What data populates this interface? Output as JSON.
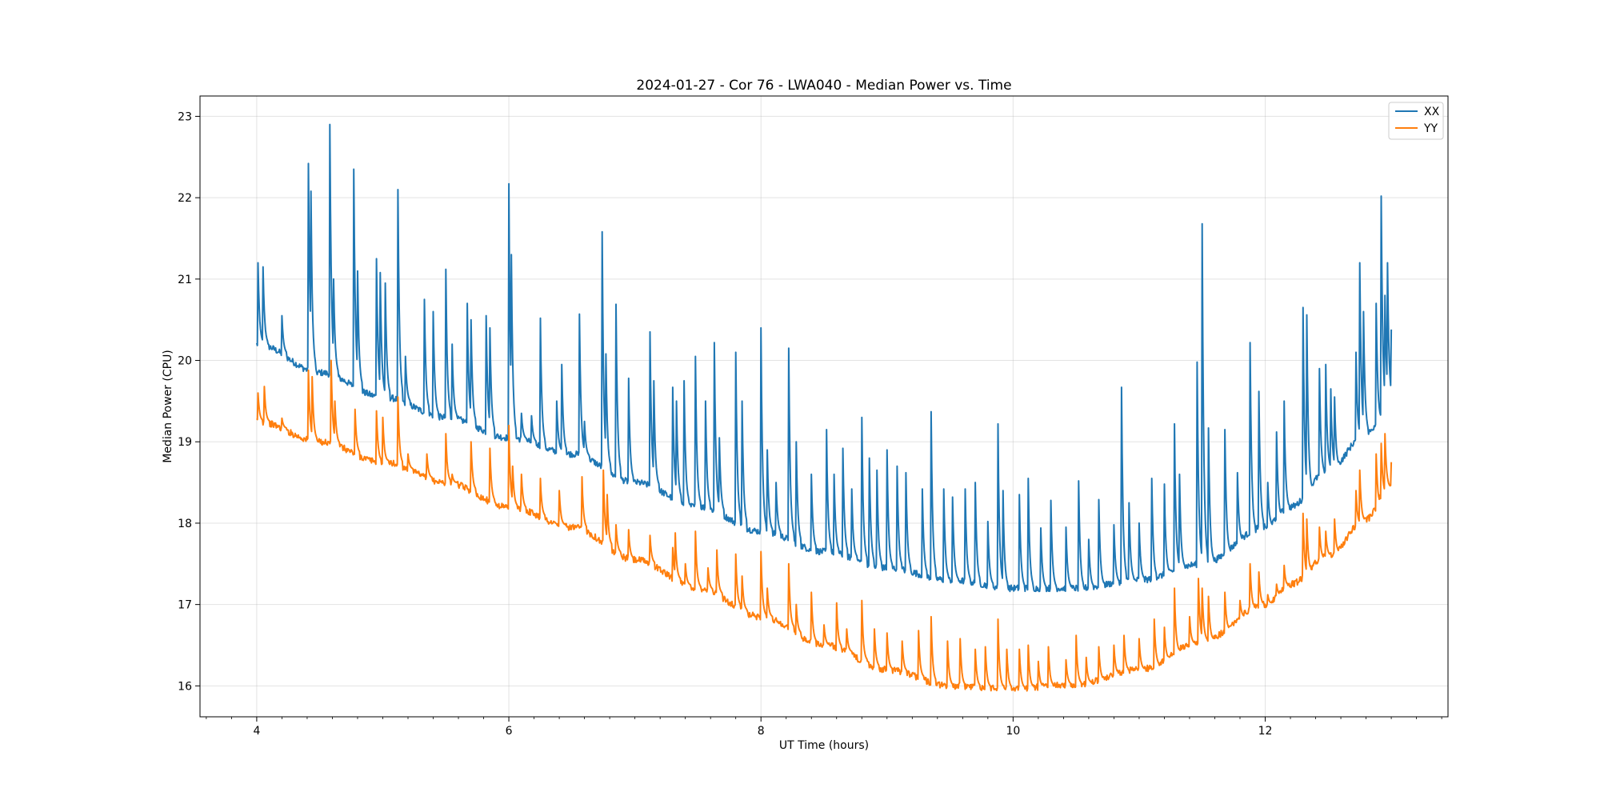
{
  "chart_data": {
    "type": "line",
    "title": "2024-01-27 - Cor 76 - LWA040 - Median Power vs. Time",
    "xlabel": "UT Time (hours)",
    "ylabel": "Median Power (CPU)",
    "xlim": [
      3.55,
      13.45
    ],
    "ylim": [
      15.62,
      23.25
    ],
    "xticks": [
      4,
      6,
      8,
      10,
      12
    ],
    "xtick_labels": [
      "4",
      "6",
      "8",
      "10",
      "12"
    ],
    "yticks": [
      16,
      17,
      18,
      19,
      20,
      21,
      22,
      23
    ],
    "ytick_labels": [
      "16",
      "17",
      "18",
      "19",
      "20",
      "21",
      "22",
      "23"
    ],
    "grid": true,
    "legend": "top-right",
    "series": [
      {
        "name": "XX",
        "color": "#1f77b4",
        "baseline": {
          "x": [
            4.0,
            4.5,
            5.0,
            5.5,
            6.0,
            6.5,
            7.0,
            7.5,
            8.0,
            8.5,
            9.0,
            9.5,
            10.0,
            10.5,
            11.0,
            11.5,
            12.0,
            12.2,
            12.5,
            12.8,
            13.0
          ],
          "y": [
            20.2,
            19.85,
            19.55,
            19.3,
            19.05,
            18.85,
            18.5,
            18.2,
            17.9,
            17.65,
            17.45,
            17.3,
            17.2,
            17.2,
            17.3,
            17.5,
            17.95,
            18.2,
            18.65,
            19.1,
            19.5
          ]
        },
        "spikes": [
          {
            "x": 4.01,
            "y": 21.2
          },
          {
            "x": 4.05,
            "y": 21.15
          },
          {
            "x": 4.2,
            "y": 20.55
          },
          {
            "x": 4.41,
            "y": 22.42
          },
          {
            "x": 4.43,
            "y": 22.08
          },
          {
            "x": 4.58,
            "y": 22.9
          },
          {
            "x": 4.61,
            "y": 21.0
          },
          {
            "x": 4.77,
            "y": 22.35
          },
          {
            "x": 4.8,
            "y": 21.1
          },
          {
            "x": 4.95,
            "y": 21.25
          },
          {
            "x": 4.98,
            "y": 21.08
          },
          {
            "x": 5.02,
            "y": 20.95
          },
          {
            "x": 5.12,
            "y": 22.1
          },
          {
            "x": 5.18,
            "y": 20.05
          },
          {
            "x": 5.33,
            "y": 20.75
          },
          {
            "x": 5.4,
            "y": 20.6
          },
          {
            "x": 5.5,
            "y": 21.12
          },
          {
            "x": 5.55,
            "y": 20.2
          },
          {
            "x": 5.67,
            "y": 20.7
          },
          {
            "x": 5.7,
            "y": 20.5
          },
          {
            "x": 5.82,
            "y": 20.55
          },
          {
            "x": 5.85,
            "y": 20.4
          },
          {
            "x": 6.0,
            "y": 22.17
          },
          {
            "x": 6.02,
            "y": 21.3
          },
          {
            "x": 6.1,
            "y": 19.35
          },
          {
            "x": 6.18,
            "y": 19.32
          },
          {
            "x": 6.25,
            "y": 20.52
          },
          {
            "x": 6.38,
            "y": 19.5
          },
          {
            "x": 6.42,
            "y": 19.95
          },
          {
            "x": 6.56,
            "y": 20.57
          },
          {
            "x": 6.6,
            "y": 19.25
          },
          {
            "x": 6.74,
            "y": 21.58
          },
          {
            "x": 6.77,
            "y": 20.08
          },
          {
            "x": 6.85,
            "y": 20.69
          },
          {
            "x": 6.95,
            "y": 19.78
          },
          {
            "x": 7.12,
            "y": 20.35
          },
          {
            "x": 7.15,
            "y": 19.75
          },
          {
            "x": 7.3,
            "y": 19.67
          },
          {
            "x": 7.33,
            "y": 19.5
          },
          {
            "x": 7.39,
            "y": 19.75
          },
          {
            "x": 7.48,
            "y": 20.05
          },
          {
            "x": 7.56,
            "y": 19.5
          },
          {
            "x": 7.63,
            "y": 20.22
          },
          {
            "x": 7.67,
            "y": 19.05
          },
          {
            "x": 7.8,
            "y": 20.1
          },
          {
            "x": 7.85,
            "y": 19.5
          },
          {
            "x": 8.0,
            "y": 20.4
          },
          {
            "x": 8.05,
            "y": 18.9
          },
          {
            "x": 8.12,
            "y": 18.5
          },
          {
            "x": 8.22,
            "y": 20.15
          },
          {
            "x": 8.28,
            "y": 19.0
          },
          {
            "x": 8.4,
            "y": 18.6
          },
          {
            "x": 8.52,
            "y": 19.15
          },
          {
            "x": 8.58,
            "y": 18.6
          },
          {
            "x": 8.65,
            "y": 18.92
          },
          {
            "x": 8.72,
            "y": 18.42
          },
          {
            "x": 8.8,
            "y": 19.3
          },
          {
            "x": 8.86,
            "y": 18.8
          },
          {
            "x": 8.92,
            "y": 18.65
          },
          {
            "x": 9.0,
            "y": 18.9
          },
          {
            "x": 9.08,
            "y": 18.7
          },
          {
            "x": 9.15,
            "y": 18.62
          },
          {
            "x": 9.28,
            "y": 18.42
          },
          {
            "x": 9.35,
            "y": 19.37
          },
          {
            "x": 9.45,
            "y": 18.42
          },
          {
            "x": 9.52,
            "y": 18.32
          },
          {
            "x": 9.62,
            "y": 18.42
          },
          {
            "x": 9.7,
            "y": 18.5
          },
          {
            "x": 9.8,
            "y": 18.02
          },
          {
            "x": 9.88,
            "y": 19.22
          },
          {
            "x": 9.92,
            "y": 18.4
          },
          {
            "x": 10.05,
            "y": 18.35
          },
          {
            "x": 10.12,
            "y": 18.55
          },
          {
            "x": 10.22,
            "y": 17.94
          },
          {
            "x": 10.3,
            "y": 18.28
          },
          {
            "x": 10.42,
            "y": 17.95
          },
          {
            "x": 10.52,
            "y": 18.52
          },
          {
            "x": 10.6,
            "y": 17.8
          },
          {
            "x": 10.68,
            "y": 18.29
          },
          {
            "x": 10.8,
            "y": 17.98
          },
          {
            "x": 10.86,
            "y": 19.67
          },
          {
            "x": 10.92,
            "y": 18.25
          },
          {
            "x": 11.0,
            "y": 18.0
          },
          {
            "x": 11.1,
            "y": 18.55
          },
          {
            "x": 11.2,
            "y": 18.48
          },
          {
            "x": 11.28,
            "y": 19.22
          },
          {
            "x": 11.32,
            "y": 18.6
          },
          {
            "x": 11.46,
            "y": 19.98
          },
          {
            "x": 11.5,
            "y": 21.68
          },
          {
            "x": 11.55,
            "y": 19.17
          },
          {
            "x": 11.68,
            "y": 19.15
          },
          {
            "x": 11.78,
            "y": 18.62
          },
          {
            "x": 11.88,
            "y": 20.22
          },
          {
            "x": 11.95,
            "y": 19.62
          },
          {
            "x": 12.02,
            "y": 18.5
          },
          {
            "x": 12.09,
            "y": 19.12
          },
          {
            "x": 12.15,
            "y": 19.5
          },
          {
            "x": 12.3,
            "y": 20.65
          },
          {
            "x": 12.33,
            "y": 20.56
          },
          {
            "x": 12.43,
            "y": 19.9
          },
          {
            "x": 12.48,
            "y": 19.95
          },
          {
            "x": 12.52,
            "y": 19.65
          },
          {
            "x": 12.55,
            "y": 19.55
          },
          {
            "x": 12.72,
            "y": 20.1
          },
          {
            "x": 12.75,
            "y": 21.2
          },
          {
            "x": 12.78,
            "y": 20.6
          },
          {
            "x": 12.88,
            "y": 20.7
          },
          {
            "x": 12.92,
            "y": 22.02
          },
          {
            "x": 12.95,
            "y": 20.8
          },
          {
            "x": 12.97,
            "y": 21.2
          },
          {
            "x": 13.0,
            "y": 20.38
          }
        ]
      },
      {
        "name": "YY",
        "color": "#ff7f0e",
        "baseline": {
          "x": [
            4.0,
            4.5,
            5.0,
            5.5,
            6.0,
            6.5,
            7.0,
            7.5,
            8.0,
            8.5,
            9.0,
            9.5,
            10.0,
            10.5,
            11.0,
            11.5,
            12.0,
            12.2,
            12.5,
            12.8,
            13.0
          ],
          "y": [
            19.25,
            19.0,
            18.75,
            18.5,
            18.2,
            17.95,
            17.55,
            17.2,
            16.85,
            16.5,
            16.2,
            16.0,
            15.97,
            16.02,
            16.2,
            16.55,
            17.0,
            17.25,
            17.6,
            18.05,
            18.5
          ]
        },
        "spikes": [
          {
            "x": 4.01,
            "y": 19.6
          },
          {
            "x": 4.06,
            "y": 19.68
          },
          {
            "x": 4.2,
            "y": 19.29
          },
          {
            "x": 4.41,
            "y": 19.88
          },
          {
            "x": 4.44,
            "y": 19.8
          },
          {
            "x": 4.59,
            "y": 20.0
          },
          {
            "x": 4.62,
            "y": 19.5
          },
          {
            "x": 4.78,
            "y": 19.4
          },
          {
            "x": 4.95,
            "y": 19.38
          },
          {
            "x": 5.0,
            "y": 19.3
          },
          {
            "x": 5.12,
            "y": 19.55
          },
          {
            "x": 5.2,
            "y": 18.85
          },
          {
            "x": 5.35,
            "y": 18.85
          },
          {
            "x": 5.5,
            "y": 19.1
          },
          {
            "x": 5.55,
            "y": 18.6
          },
          {
            "x": 5.7,
            "y": 19.0
          },
          {
            "x": 5.85,
            "y": 18.92
          },
          {
            "x": 6.0,
            "y": 19.2
          },
          {
            "x": 6.03,
            "y": 18.7
          },
          {
            "x": 6.1,
            "y": 18.6
          },
          {
            "x": 6.25,
            "y": 18.55
          },
          {
            "x": 6.4,
            "y": 18.4
          },
          {
            "x": 6.58,
            "y": 18.57
          },
          {
            "x": 6.75,
            "y": 18.65
          },
          {
            "x": 6.78,
            "y": 18.35
          },
          {
            "x": 6.85,
            "y": 17.98
          },
          {
            "x": 6.95,
            "y": 17.92
          },
          {
            "x": 7.12,
            "y": 17.85
          },
          {
            "x": 7.3,
            "y": 17.7
          },
          {
            "x": 7.32,
            "y": 17.88
          },
          {
            "x": 7.4,
            "y": 17.5
          },
          {
            "x": 7.48,
            "y": 17.9
          },
          {
            "x": 7.58,
            "y": 17.45
          },
          {
            "x": 7.65,
            "y": 17.67
          },
          {
            "x": 7.8,
            "y": 17.62
          },
          {
            "x": 7.85,
            "y": 17.35
          },
          {
            "x": 8.0,
            "y": 17.65
          },
          {
            "x": 8.05,
            "y": 17.2
          },
          {
            "x": 8.22,
            "y": 17.5
          },
          {
            "x": 8.28,
            "y": 17.0
          },
          {
            "x": 8.4,
            "y": 17.15
          },
          {
            "x": 8.5,
            "y": 16.75
          },
          {
            "x": 8.6,
            "y": 17.02
          },
          {
            "x": 8.68,
            "y": 16.7
          },
          {
            "x": 8.8,
            "y": 17.05
          },
          {
            "x": 8.9,
            "y": 16.7
          },
          {
            "x": 9.0,
            "y": 16.65
          },
          {
            "x": 9.12,
            "y": 16.55
          },
          {
            "x": 9.25,
            "y": 16.68
          },
          {
            "x": 9.35,
            "y": 16.85
          },
          {
            "x": 9.48,
            "y": 16.55
          },
          {
            "x": 9.58,
            "y": 16.58
          },
          {
            "x": 9.7,
            "y": 16.45
          },
          {
            "x": 9.78,
            "y": 16.48
          },
          {
            "x": 9.88,
            "y": 16.82
          },
          {
            "x": 9.95,
            "y": 16.45
          },
          {
            "x": 10.05,
            "y": 16.45
          },
          {
            "x": 10.12,
            "y": 16.5
          },
          {
            "x": 10.2,
            "y": 16.3
          },
          {
            "x": 10.28,
            "y": 16.48
          },
          {
            "x": 10.42,
            "y": 16.32
          },
          {
            "x": 10.5,
            "y": 16.62
          },
          {
            "x": 10.58,
            "y": 16.35
          },
          {
            "x": 10.68,
            "y": 16.48
          },
          {
            "x": 10.8,
            "y": 16.5
          },
          {
            "x": 10.88,
            "y": 16.62
          },
          {
            "x": 11.0,
            "y": 16.58
          },
          {
            "x": 11.12,
            "y": 16.82
          },
          {
            "x": 11.2,
            "y": 16.72
          },
          {
            "x": 11.28,
            "y": 17.2
          },
          {
            "x": 11.4,
            "y": 16.85
          },
          {
            "x": 11.47,
            "y": 17.32
          },
          {
            "x": 11.5,
            "y": 17.2
          },
          {
            "x": 11.55,
            "y": 17.1
          },
          {
            "x": 11.68,
            "y": 17.15
          },
          {
            "x": 11.8,
            "y": 17.05
          },
          {
            "x": 11.88,
            "y": 17.5
          },
          {
            "x": 11.95,
            "y": 17.4
          },
          {
            "x": 12.02,
            "y": 17.12
          },
          {
            "x": 12.09,
            "y": 17.25
          },
          {
            "x": 12.15,
            "y": 17.48
          },
          {
            "x": 12.3,
            "y": 18.12
          },
          {
            "x": 12.33,
            "y": 18.05
          },
          {
            "x": 12.43,
            "y": 17.95
          },
          {
            "x": 12.48,
            "y": 17.9
          },
          {
            "x": 12.55,
            "y": 18.05
          },
          {
            "x": 12.72,
            "y": 18.4
          },
          {
            "x": 12.75,
            "y": 18.65
          },
          {
            "x": 12.88,
            "y": 18.85
          },
          {
            "x": 12.92,
            "y": 18.98
          },
          {
            "x": 12.95,
            "y": 19.1
          },
          {
            "x": 13.0,
            "y": 18.75
          }
        ]
      }
    ]
  }
}
